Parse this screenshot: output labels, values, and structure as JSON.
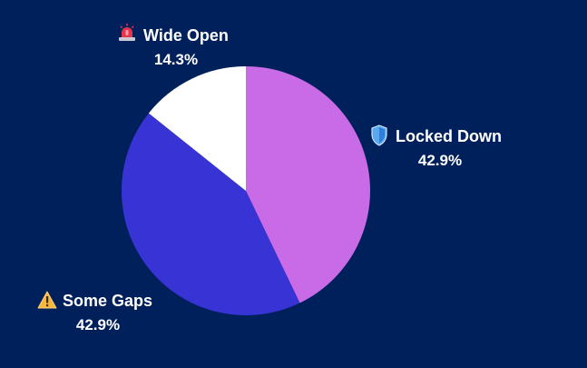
{
  "chart_data": {
    "type": "pie",
    "slices": [
      {
        "label": "Locked Down",
        "value": 42.9,
        "percent_label": "42.9%",
        "color": "#c96be6",
        "icon": "shield-icon"
      },
      {
        "label": "Some Gaps",
        "value": 42.9,
        "percent_label": "42.9%",
        "color": "#3833d4",
        "icon": "warning-icon"
      },
      {
        "label": "Wide Open",
        "value": 14.3,
        "percent_label": "14.3%",
        "color": "#ffffff",
        "icon": "siren-icon"
      }
    ],
    "start_angle": "top (12 o'clock), clockwise",
    "background": "#00205b",
    "legend": "none (labels placed beside slices)"
  }
}
